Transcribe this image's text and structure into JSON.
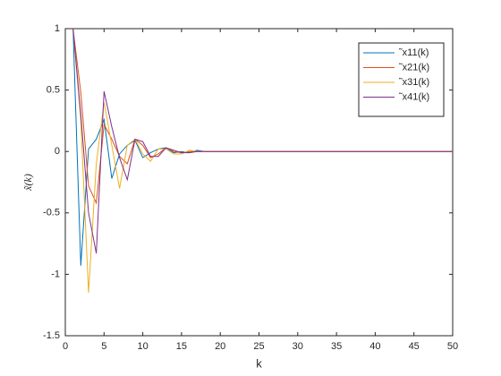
{
  "chart_data": {
    "type": "line",
    "xlabel": "k",
    "ylabel": "x̃(k)",
    "x": [
      1,
      2,
      3,
      4,
      5,
      6,
      7,
      8,
      9,
      10,
      11,
      12,
      13,
      14,
      15,
      16,
      17,
      18,
      19,
      20,
      21,
      22,
      23,
      24,
      25,
      26,
      27,
      28,
      29,
      30,
      31,
      32,
      33,
      34,
      35,
      36,
      37,
      38,
      39,
      40,
      41,
      42,
      43,
      44,
      45,
      46,
      47,
      48,
      49,
      50
    ],
    "series": [
      {
        "name": "˜x11(k)",
        "color": "#0072bd",
        "values": [
          1,
          -0.93,
          0.02,
          0.1,
          0.26,
          -0.22,
          -0.02,
          0.05,
          0.09,
          -0.05,
          -0.01,
          0.02,
          0.03,
          -0.01,
          0,
          -0.01,
          0.01,
          0,
          0,
          0,
          0,
          0,
          0,
          0,
          0,
          0,
          0,
          0,
          0,
          0,
          0,
          0,
          0,
          0,
          0,
          0,
          0,
          0,
          0,
          0,
          0,
          0,
          0,
          0,
          0,
          0,
          0,
          0,
          0,
          0
        ]
      },
      {
        "name": "˜x21(k)",
        "color": "#d95319",
        "values": [
          1,
          0.48,
          -0.28,
          -0.42,
          0.22,
          0.1,
          -0.04,
          -0.1,
          0.1,
          0.05,
          -0.05,
          -0.02,
          0.03,
          0,
          -0.01,
          0,
          0,
          0,
          0,
          0,
          0,
          0,
          0,
          0,
          0,
          0,
          0,
          0,
          0,
          0,
          0,
          0,
          0,
          0,
          0,
          0,
          0,
          0,
          0,
          0,
          0,
          0,
          0,
          0,
          0,
          0,
          0,
          0,
          0,
          0
        ]
      },
      {
        "name": "˜x31(k)",
        "color": "#edb120",
        "values": [
          1,
          0.25,
          -1.15,
          -0.1,
          0.4,
          0.05,
          -0.3,
          0.05,
          0.1,
          -0.02,
          -0.08,
          0.02,
          0.02,
          -0.02,
          -0.02,
          0.01,
          0,
          0,
          0,
          0,
          0,
          0,
          0,
          0,
          0,
          0,
          0,
          0,
          0,
          0,
          0,
          0,
          0,
          0,
          0,
          0,
          0,
          0,
          0,
          0,
          0,
          0,
          0,
          0,
          0,
          0,
          0,
          0,
          0,
          0
        ]
      },
      {
        "name": "˜x41(k)",
        "color": "#7e2f8e",
        "values": [
          1,
          0.3,
          -0.5,
          -0.83,
          0.49,
          0.2,
          -0.05,
          -0.23,
          0.1,
          0.08,
          -0.04,
          -0.04,
          0.03,
          0.01,
          -0.01,
          -0.01,
          0,
          0,
          0,
          0,
          0,
          0,
          0,
          0,
          0,
          0,
          0,
          0,
          0,
          0,
          0,
          0,
          0,
          0,
          0,
          0,
          0,
          0,
          0,
          0,
          0,
          0,
          0,
          0,
          0,
          0,
          0,
          0,
          0,
          0
        ]
      }
    ],
    "xlim": [
      0,
      50
    ],
    "xticks": [
      0,
      5,
      10,
      15,
      20,
      25,
      30,
      35,
      40,
      45,
      50
    ],
    "ylim": [
      -1.5,
      1
    ],
    "yticks": [
      -1.5,
      -1,
      -0.5,
      0,
      0.5,
      1
    ],
    "legend_location": "northeast"
  }
}
